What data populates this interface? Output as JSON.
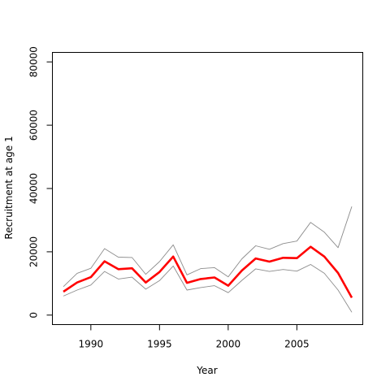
{
  "chart_data": {
    "type": "line",
    "xlabel": "Year",
    "ylabel": "Recruitment at age 1",
    "xlim": [
      1987.2,
      2009.8
    ],
    "ylim": [
      -3000,
      83000
    ],
    "x_ticks": [
      1990,
      1995,
      2000,
      2005
    ],
    "y_ticks": [
      0,
      20000,
      40000,
      60000,
      80000
    ],
    "x_tick_labels": [
      "1990",
      "1995",
      "2000",
      "2005"
    ],
    "y_tick_labels": [
      "0",
      "20000",
      "40000",
      "60000",
      "80000"
    ],
    "grid": false,
    "x": [
      1988,
      1989,
      1990,
      1991,
      1992,
      1993,
      1994,
      1995,
      1996,
      1997,
      1998,
      1999,
      2000,
      2001,
      2002,
      2003,
      2004,
      2005,
      2006,
      2007,
      2008,
      2009
    ],
    "series": [
      {
        "color": "#ff0000",
        "style": "estimate",
        "values": [
          7400,
          10300,
          12000,
          17000,
          14500,
          14800,
          10300,
          13600,
          18500,
          10200,
          11400,
          11900,
          9300,
          14100,
          17900,
          16900,
          18100,
          18000,
          21600,
          18500,
          13300,
          5500
        ]
      },
      {
        "color": "#8c8c8c",
        "style": "upper",
        "values": [
          9000,
          13200,
          14800,
          21000,
          18300,
          18200,
          12900,
          16900,
          22200,
          12700,
          14700,
          15000,
          12100,
          17800,
          21900,
          20800,
          22600,
          23400,
          29300,
          26200,
          21300,
          34300
        ]
      },
      {
        "color": "#8c8c8c",
        "style": "lower",
        "values": [
          6000,
          7900,
          9500,
          13800,
          11400,
          12000,
          8200,
          10900,
          15500,
          7900,
          8700,
          9300,
          7100,
          11000,
          14600,
          13800,
          14400,
          13900,
          16000,
          13200,
          7900,
          900
        ]
      }
    ]
  }
}
